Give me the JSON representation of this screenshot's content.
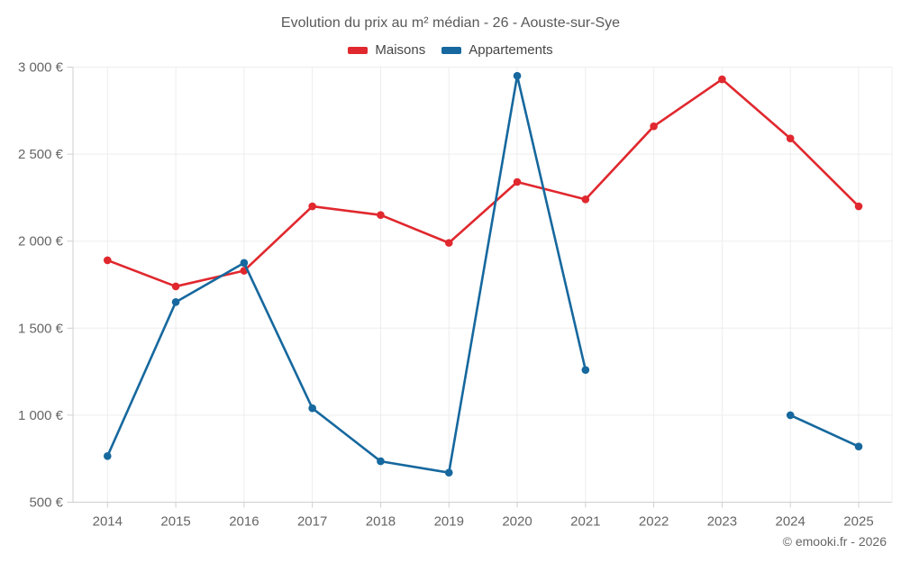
{
  "header": {
    "title": "Evolution du prix au m² médian - 26 - Aouste-sur-Sye"
  },
  "legend": {
    "items": [
      {
        "label": "Maisons"
      },
      {
        "label": "Appartements"
      }
    ]
  },
  "footer": {
    "attribution": "© emooki.fr - 2026"
  },
  "chart_data": {
    "type": "line",
    "title": "Evolution du prix au m² médian - 26 - Aouste-sur-Sye",
    "x": [
      2014,
      2015,
      2016,
      2017,
      2018,
      2019,
      2020,
      2021,
      2022,
      2023,
      2024,
      2025
    ],
    "series": [
      {
        "name": "Maisons",
        "color": "#e0282e",
        "values": [
          1890,
          1740,
          1830,
          2200,
          2150,
          1990,
          2340,
          2240,
          2660,
          2930,
          2590,
          2200
        ]
      },
      {
        "name": "Appartements",
        "color": "#16689e",
        "values": [
          765,
          1650,
          1875,
          1040,
          735,
          670,
          2950,
          1260,
          null,
          null,
          1000,
          820
        ]
      }
    ],
    "ylim": [
      500,
      3000
    ],
    "ytick_step": 500,
    "y_suffix": "€",
    "grid": true,
    "legend_position": "top",
    "marker": "circle",
    "colors": {
      "gridline": "#ededed",
      "axis": "#cfcfcf",
      "tick_label": "#666666"
    }
  }
}
